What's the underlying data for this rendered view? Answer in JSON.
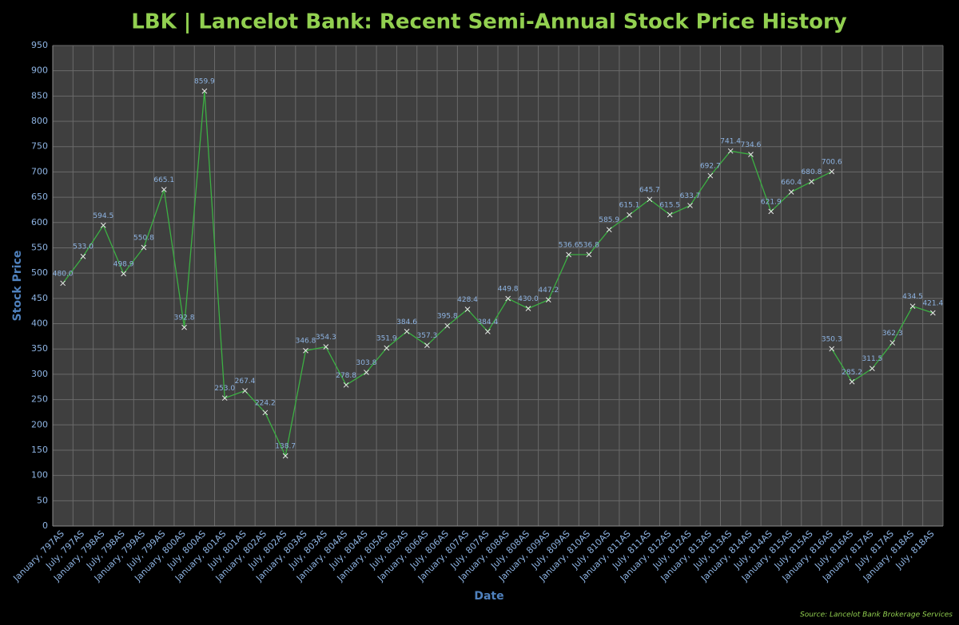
{
  "chart_data": {
    "type": "line",
    "title": "LBK | Lancelot Bank: Recent Semi-Annual Stock Price History",
    "x_label": "Date",
    "y_label": "Stock Price",
    "source": "Source: Lancelot Bank Brokerage Services",
    "categories": [
      "January, 797AS",
      "July, 797AS",
      "January, 798AS",
      "July, 798AS",
      "January, 799AS",
      "July, 799AS",
      "January, 800AS",
      "July, 800AS",
      "January, 801AS",
      "July, 801AS",
      "January, 802AS",
      "July, 802AS",
      "January, 803AS",
      "July, 803AS",
      "January, 804AS",
      "July, 804AS",
      "January, 805AS",
      "July, 805AS",
      "January, 806AS",
      "July, 806AS",
      "January, 807AS",
      "July, 807AS",
      "January, 808AS",
      "July, 808AS",
      "January, 809AS",
      "July, 809AS",
      "January, 810AS",
      "July, 810AS",
      "January, 811AS",
      "July, 811AS",
      "January, 812AS",
      "July, 812AS",
      "January, 813AS",
      "July, 813AS",
      "January, 814AS",
      "July, 814AS",
      "January, 815AS",
      "July, 815AS",
      "January, 816AS",
      "July, 816AS",
      "January, 817AS",
      "July, 817AS",
      "January, 818AS",
      "July, 818AS"
    ],
    "series": [
      {
        "color": "#3cb043",
        "values": [
          480,
          533,
          594.5,
          498.9,
          550.8,
          665.1,
          392.8,
          859.9,
          253,
          267.4,
          224.2,
          138.7,
          346.8,
          354.3,
          278.8,
          303.8,
          351.9,
          384.6,
          357.3,
          395.8,
          428.4,
          384.4,
          449.8,
          430,
          447.2,
          536.6,
          536.8,
          585.9,
          615.1,
          645.7,
          615.5,
          633.7,
          692.7,
          741.4,
          734.6,
          621.9,
          660.4,
          680.8,
          700.6,
          null,
          null,
          null,
          null,
          null
        ],
        "value_labels": [
          "480.0",
          "533.0",
          "594.5",
          "498.9",
          "550.8",
          "665.1",
          "392.8",
          "859.9",
          "253.0",
          "267.4",
          "224.2",
          "138.7",
          "346.8",
          "354.3",
          "278.8",
          "303.8",
          "351.9",
          "384.6",
          "357.3",
          "395.8",
          "428.4",
          "384.4",
          "449.8",
          "430.0",
          "447.2",
          "536.6",
          "536.8",
          "585.9",
          "615.1",
          "645.7",
          "615.5",
          "633.7",
          "692.7",
          "741.4",
          "734.6",
          "621.9",
          "660.4",
          "680.8",
          "700.6",
          null,
          null,
          null,
          null,
          null
        ]
      },
      {
        "color": "#3cb043",
        "values": [
          null,
          null,
          null,
          null,
          null,
          null,
          null,
          null,
          null,
          null,
          null,
          null,
          null,
          null,
          null,
          null,
          null,
          null,
          null,
          null,
          null,
          null,
          null,
          null,
          null,
          null,
          null,
          null,
          null,
          null,
          null,
          null,
          null,
          null,
          null,
          null,
          null,
          null,
          350.3,
          285.2,
          311.5,
          362.3,
          434.5,
          421.4
        ],
        "value_labels": [
          null,
          null,
          null,
          null,
          null,
          null,
          null,
          null,
          null,
          null,
          null,
          null,
          null,
          null,
          null,
          null,
          null,
          null,
          null,
          null,
          null,
          null,
          null,
          null,
          null,
          null,
          null,
          null,
          null,
          null,
          null,
          null,
          null,
          null,
          null,
          null,
          null,
          null,
          "350.3",
          "285.2",
          "311.5",
          "362.3",
          "434.5",
          "421.4"
        ]
      }
    ],
    "ylim": [
      0,
      950
    ],
    "yticks": [
      0,
      50,
      100,
      150,
      200,
      250,
      300,
      350,
      400,
      450,
      500,
      550,
      600,
      650,
      700,
      750,
      800,
      850,
      900,
      950
    ],
    "grid": true
  }
}
